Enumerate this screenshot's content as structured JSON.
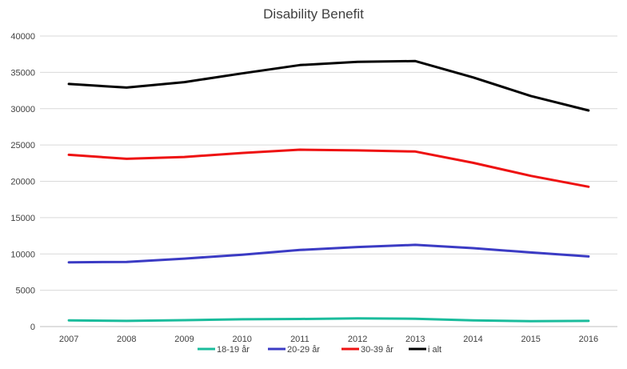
{
  "chart_data": {
    "type": "line",
    "title": "Disability Benefit",
    "xlabel": "",
    "ylabel": "",
    "x": [
      "2007",
      "2008",
      "2009",
      "2010",
      "2011",
      "2012",
      "2013",
      "2014",
      "2015",
      "2016"
    ],
    "ylim": [
      0,
      40000
    ],
    "yticks": [
      "0",
      "5000",
      "10000",
      "15000",
      "20000",
      "25000",
      "30000",
      "35000",
      "40000"
    ],
    "grid": true,
    "legend_position": "bottom",
    "series": [
      {
        "name": "18-19 år",
        "color": "#1abc9c",
        "values": [
          850,
          780,
          880,
          1000,
          1050,
          1120,
          1080,
          850,
          750,
          780
        ]
      },
      {
        "name": "20-29 år",
        "color": "#3b3bc4",
        "values": [
          8850,
          8900,
          9350,
          9900,
          10550,
          10950,
          11250,
          10800,
          10200,
          9650
        ]
      },
      {
        "name": "30-39 år",
        "color": "#ee1111",
        "values": [
          23650,
          23100,
          23350,
          23900,
          24350,
          24250,
          24100,
          22550,
          20750,
          19250
        ]
      },
      {
        "name": "i alt",
        "color": "#000000",
        "values": [
          33400,
          32900,
          33650,
          34850,
          36000,
          36450,
          36550,
          34300,
          31750,
          29750
        ]
      }
    ]
  }
}
